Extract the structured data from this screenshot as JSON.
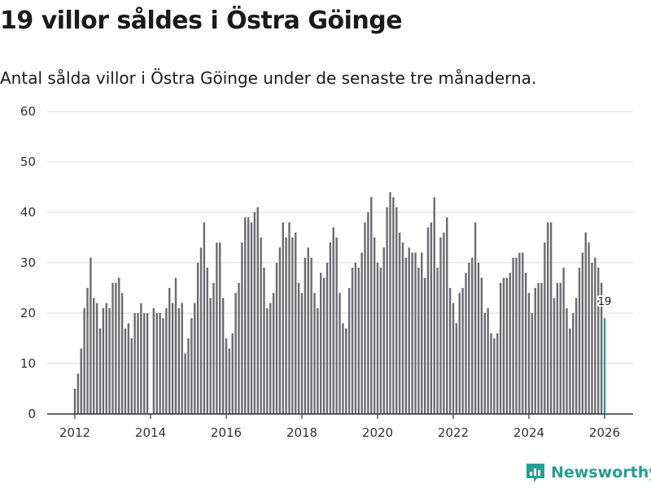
{
  "header": {
    "title": "19 villor såldes i Östra Göinge",
    "subtitle": "Antal sålda villor i Östra Göinge under de senaste tre månaderna."
  },
  "brand": {
    "name": "Newsworthy"
  },
  "colors": {
    "bar": "#6b6b70",
    "highlight": "#2a9d8f",
    "grid": "#dddddd",
    "axis": "#333333"
  },
  "chart_data": {
    "type": "bar",
    "title": "19 villor såldes i Östra Göinge",
    "ylim": [
      0,
      60
    ],
    "yticks": [
      0,
      10,
      20,
      30,
      40,
      50,
      60
    ],
    "xticks": [
      "2012",
      "2014",
      "2016",
      "2018",
      "2020",
      "2022",
      "2024",
      "2026"
    ],
    "start": {
      "year": 2012,
      "month": 1
    },
    "values": [
      5,
      8,
      13,
      21,
      25,
      31,
      23,
      22,
      17,
      21,
      22,
      21,
      26,
      26,
      27,
      24,
      17,
      18,
      15,
      20,
      20,
      22,
      20,
      20,
      0,
      21,
      20,
      20,
      19,
      21,
      25,
      22,
      27,
      21,
      22,
      12,
      15,
      19,
      22,
      30,
      33,
      38,
      29,
      23,
      26,
      34,
      34,
      23,
      15,
      13,
      16,
      24,
      26,
      34,
      39,
      39,
      38,
      40,
      41,
      35,
      29,
      21,
      22,
      24,
      30,
      33,
      38,
      35,
      38,
      35,
      36,
      26,
      24,
      31,
      33,
      31,
      24,
      21,
      28,
      27,
      30,
      34,
      37,
      35,
      24,
      18,
      17,
      25,
      29,
      30,
      29,
      32,
      38,
      40,
      43,
      35,
      30,
      29,
      33,
      41,
      44,
      43,
      41,
      36,
      34,
      31,
      33,
      32,
      32,
      29,
      32,
      27,
      37,
      38,
      43,
      29,
      35,
      36,
      39,
      25,
      22,
      18,
      24,
      25,
      28,
      30,
      31,
      38,
      30,
      27,
      20,
      21,
      16,
      15,
      16,
      26,
      27,
      27,
      28,
      31,
      31,
      32,
      32,
      28,
      24,
      20,
      25,
      26,
      26,
      34,
      38,
      38,
      23,
      26,
      26,
      29,
      21,
      17,
      20,
      23,
      29,
      32,
      36,
      34,
      30,
      31,
      29,
      26,
      19
    ],
    "highlight_last": true,
    "annotation": "19"
  }
}
